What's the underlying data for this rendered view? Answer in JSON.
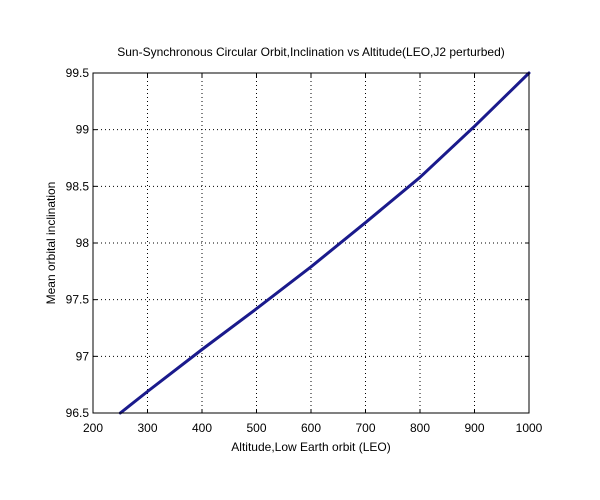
{
  "chart_data": {
    "type": "line",
    "title": "Sun-Synchronous Circular Orbit,Inclination vs Altitude(LEO,J2 perturbed)",
    "xlabel": "Altitude,Low Earth orbit (LEO)",
    "ylabel": "Mean orbital inclination",
    "xlim": [
      200,
      1000
    ],
    "ylim": [
      96.5,
      99.5
    ],
    "xticks": [
      200,
      300,
      400,
      500,
      600,
      700,
      800,
      900,
      1000
    ],
    "yticks": [
      96.5,
      97,
      97.5,
      98,
      98.5,
      99,
      99.5
    ],
    "xtick_labels": [
      "200",
      "300",
      "400",
      "500",
      "600",
      "700",
      "800",
      "900",
      "1000"
    ],
    "ytick_labels": [
      "96.5",
      "97",
      "97.5",
      "98",
      "98.5",
      "99",
      "99.5"
    ],
    "grid": true,
    "series": [
      {
        "color": "#1a1a8c",
        "x": [
          250,
          300,
          400,
          500,
          600,
          700,
          800,
          900,
          1000
        ],
        "y": [
          96.5,
          96.69,
          97.06,
          97.42,
          97.79,
          98.18,
          98.58,
          99.03,
          99.5
        ]
      }
    ]
  }
}
